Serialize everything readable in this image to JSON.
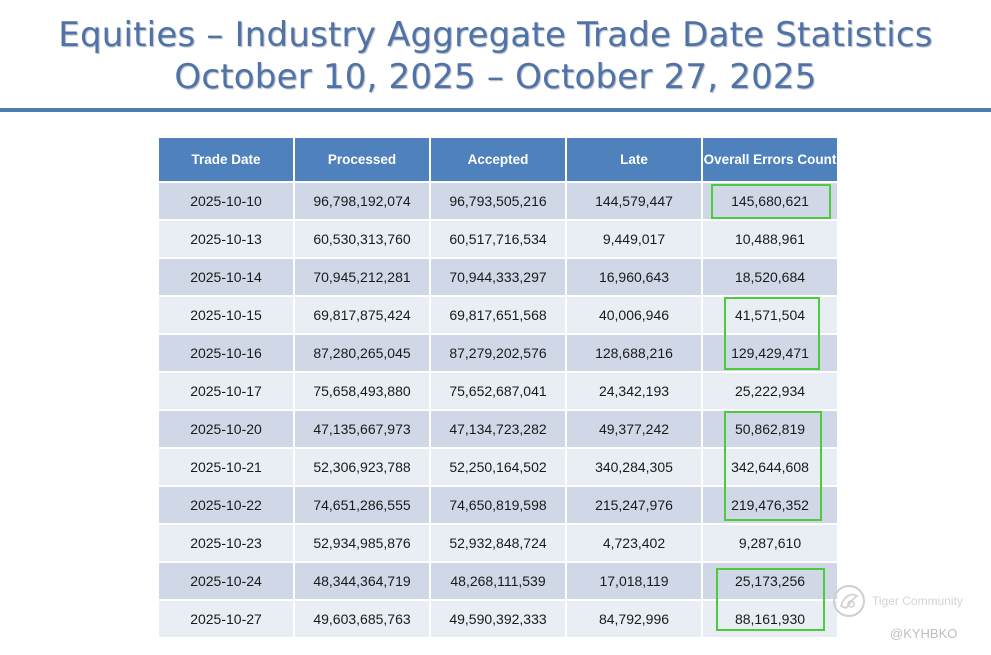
{
  "title": {
    "line1": "Equities – Industry Aggregate Trade Date Statistics",
    "line2": "October 10, 2025 – October 27, 2025"
  },
  "table": {
    "headers": [
      "Trade Date",
      "Processed",
      "Accepted",
      "Late",
      "Overall Errors Count"
    ],
    "rows": [
      [
        "2025-10-10",
        "96,798,192,074",
        "96,793,505,216",
        "144,579,447",
        "145,680,621"
      ],
      [
        "2025-10-13",
        "60,530,313,760",
        "60,517,716,534",
        "9,449,017",
        "10,488,961"
      ],
      [
        "2025-10-14",
        "70,945,212,281",
        "70,944,333,297",
        "16,960,643",
        "18,520,684"
      ],
      [
        "2025-10-15",
        "69,817,875,424",
        "69,817,651,568",
        "40,006,946",
        "41,571,504"
      ],
      [
        "2025-10-16",
        "87,280,265,045",
        "87,279,202,576",
        "128,688,216",
        "129,429,471"
      ],
      [
        "2025-10-17",
        "75,658,493,880",
        "75,652,687,041",
        "24,342,193",
        "25,222,934"
      ],
      [
        "2025-10-20",
        "47,135,667,973",
        "47,134,723,282",
        "49,377,242",
        "50,862,819"
      ],
      [
        "2025-10-21",
        "52,306,923,788",
        "52,250,164,502",
        "340,284,305",
        "342,644,608"
      ],
      [
        "2025-10-22",
        "74,651,286,555",
        "74,650,819,598",
        "215,247,976",
        "219,476,352"
      ],
      [
        "2025-10-23",
        "52,934,985,876",
        "52,932,848,724",
        "4,723,402",
        "9,287,610"
      ],
      [
        "2025-10-24",
        "48,344,364,719",
        "48,268,111,539",
        "17,018,119",
        "25,173,256"
      ],
      [
        "2025-10-27",
        "49,603,685,763",
        "49,590,392,333",
        "84,792,996",
        "88,161,930"
      ]
    ]
  },
  "colors": {
    "title": "#4f73a8",
    "rule": "#4f7cb3",
    "header_bg": "#4f81bd",
    "row_odd": "#d0d8e8",
    "row_even": "#e9edf4",
    "highlight": "#4ccb3c"
  },
  "watermark": {
    "icon": "tiger-community-logo-icon",
    "name": "Tiger Community",
    "handle": "@KYHBKO"
  }
}
